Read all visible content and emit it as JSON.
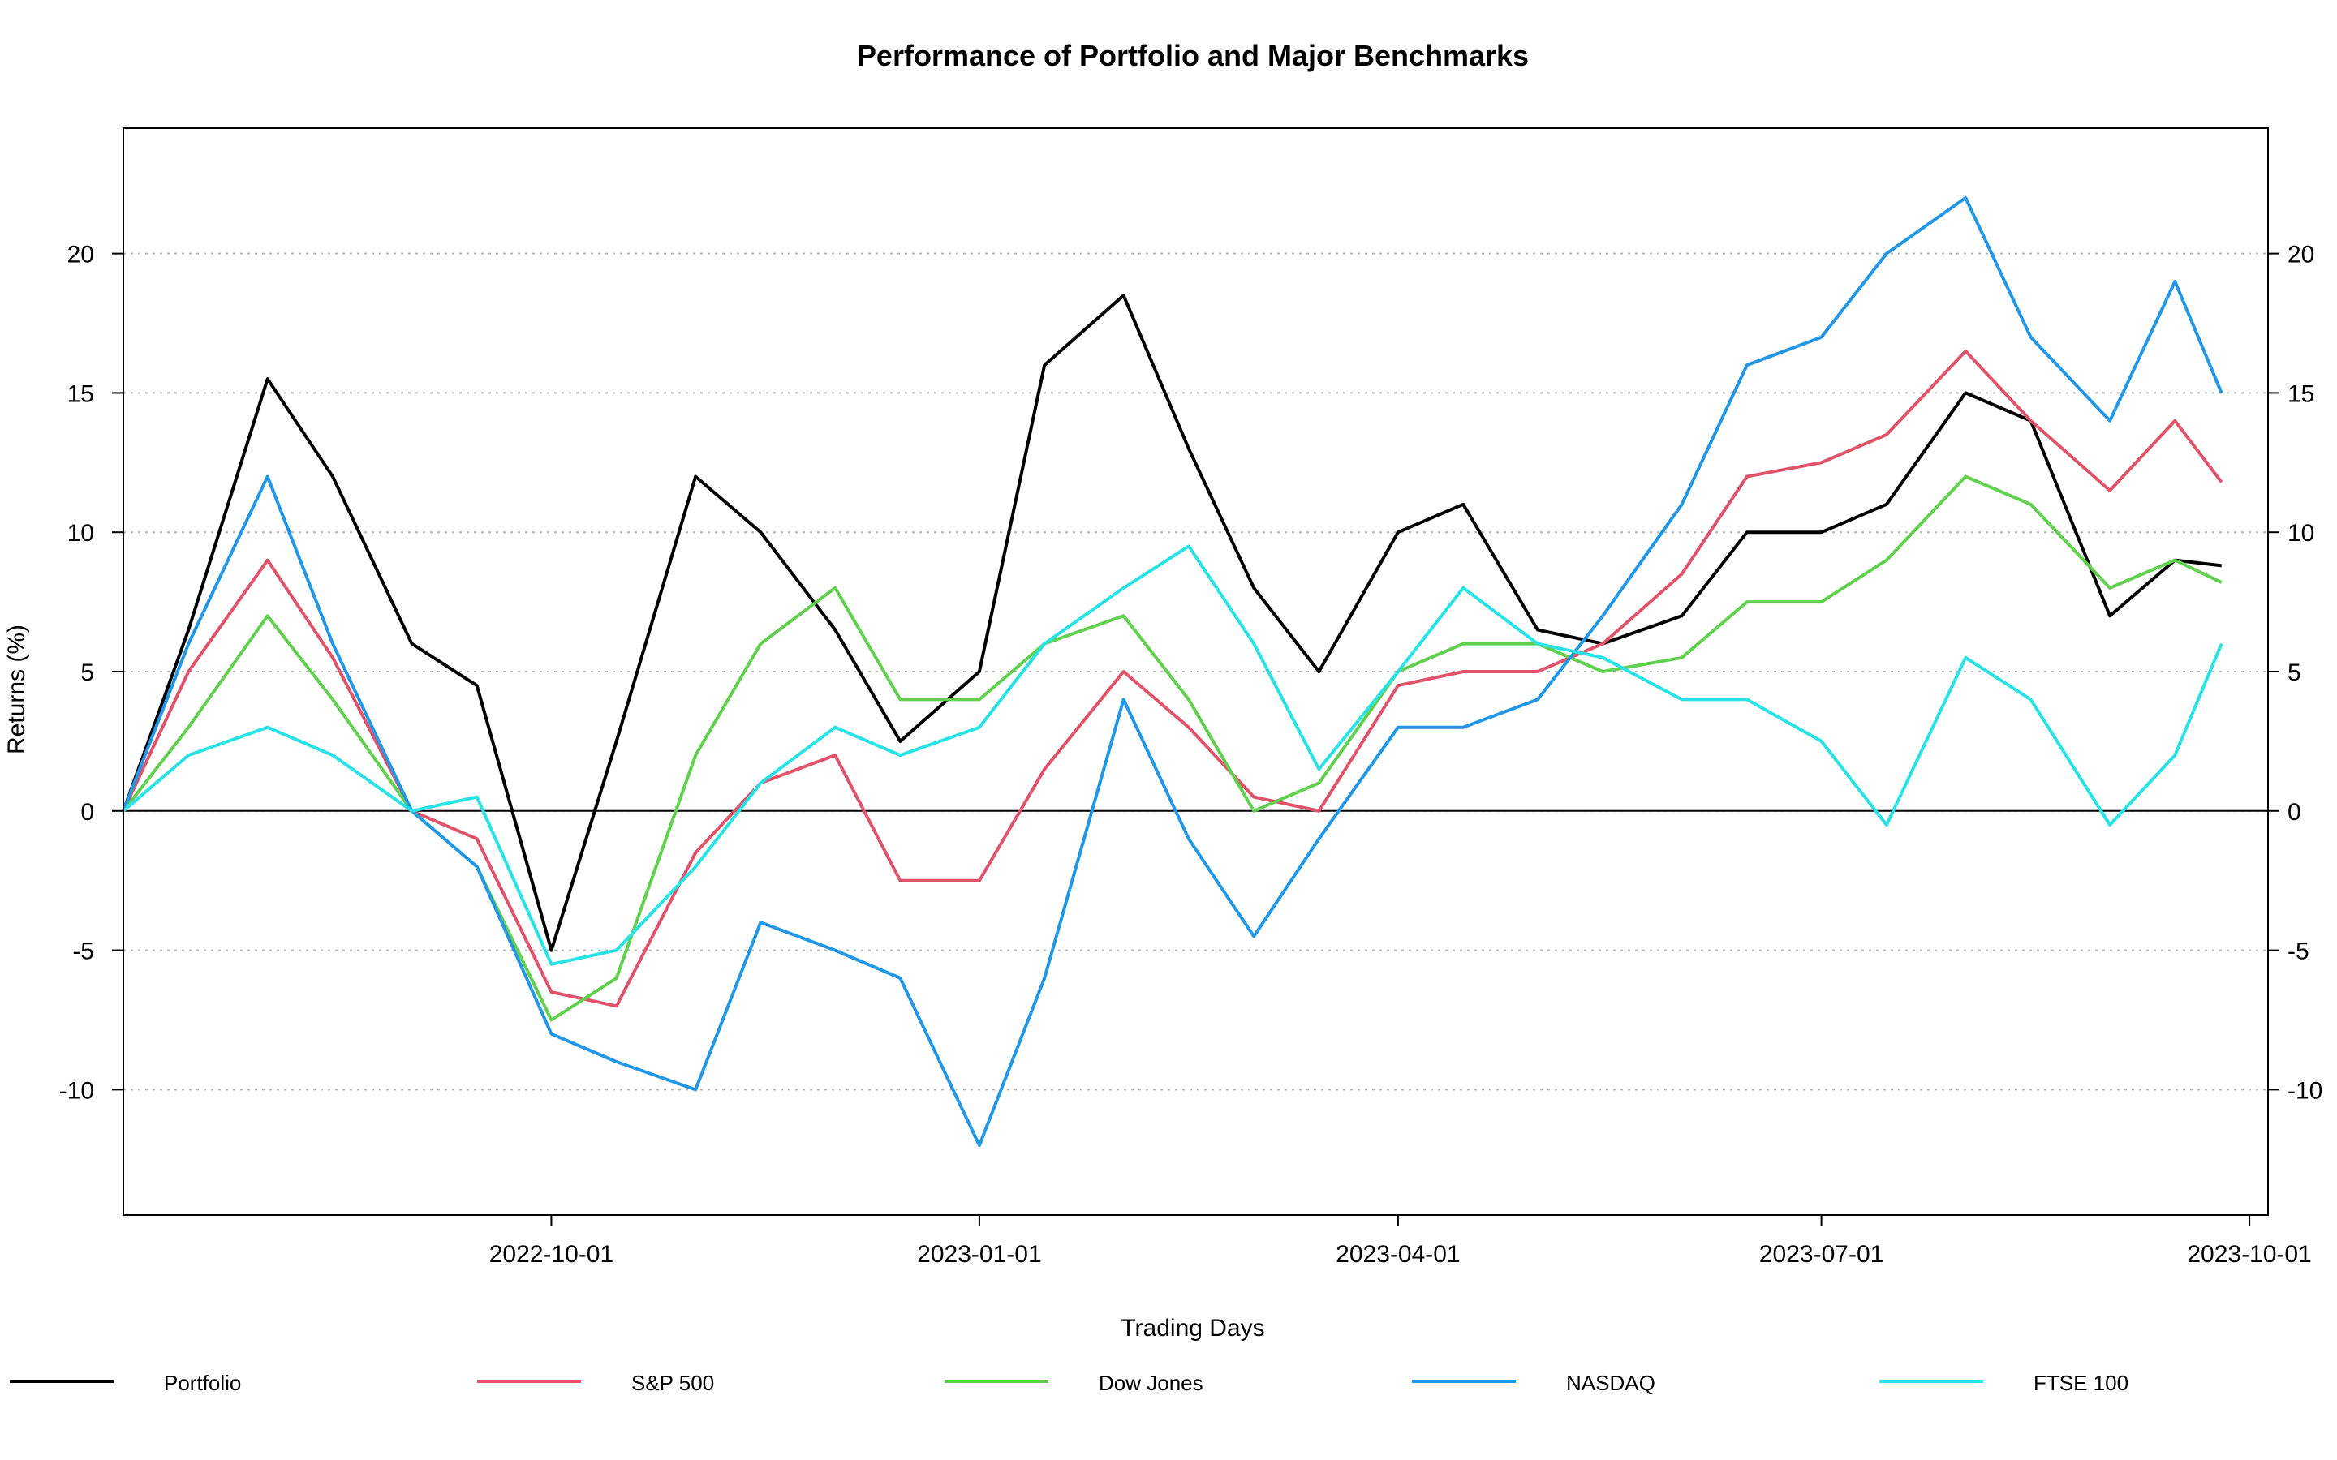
{
  "chart_data": {
    "type": "line",
    "title": "Performance of Portfolio and Major Benchmarks",
    "xlabel": "Trading Days",
    "ylabel": "Returns (%)",
    "x_range": [
      "2022-07-01",
      "2023-10-05"
    ],
    "ylim": [
      -14.5,
      24.5
    ],
    "y_ticks": [
      -10,
      -5,
      0,
      5,
      10,
      15,
      20
    ],
    "x_ticks": [
      "2022-10-01",
      "2023-01-01",
      "2023-04-01",
      "2023-07-01",
      "2023-10-01"
    ],
    "grid": "horizontal dotted at y ticks",
    "reference_line": 0,
    "legend_position": "bottom",
    "x": [
      "2022-07-01",
      "2022-07-15",
      "2022-08-01",
      "2022-08-15",
      "2022-09-01",
      "2022-09-15",
      "2022-10-01",
      "2022-10-15",
      "2022-11-01",
      "2022-11-15",
      "2022-12-01",
      "2022-12-15",
      "2023-01-01",
      "2023-01-15",
      "2023-02-01",
      "2023-02-15",
      "2023-03-01",
      "2023-03-15",
      "2023-04-01",
      "2023-04-15",
      "2023-05-01",
      "2023-05-15",
      "2023-06-01",
      "2023-06-15",
      "2023-07-01",
      "2023-07-15",
      "2023-08-01",
      "2023-08-15",
      "2023-09-01",
      "2023-09-15",
      "2023-09-25"
    ],
    "series": [
      {
        "name": "Portfolio",
        "color": "#000000",
        "values": [
          0,
          6.5,
          15.5,
          12,
          6,
          4.5,
          -5,
          2.5,
          12,
          10,
          6.5,
          2.5,
          5,
          16,
          18.5,
          13,
          8,
          5,
          10,
          11,
          6.5,
          6,
          7,
          10,
          10,
          11,
          15,
          14,
          7,
          9,
          8.8
        ]
      },
      {
        "name": "S&P 500",
        "color": "#DF536B",
        "values": [
          0,
          5,
          9,
          5.5,
          0,
          -1,
          -6.5,
          -7,
          -1.5,
          1,
          2,
          -2.5,
          -2.5,
          1.5,
          5,
          3,
          0.5,
          0,
          4.5,
          5,
          5,
          6,
          8.5,
          12,
          12.5,
          13.5,
          16.5,
          14,
          11.5,
          14,
          11.8
        ]
      },
      {
        "name": "Dow Jones",
        "color": "#61D04F",
        "values": [
          0,
          3,
          7,
          4,
          0,
          -2,
          -7.5,
          -6,
          2,
          6,
          8,
          4,
          4,
          6,
          7,
          4,
          0,
          1,
          5,
          6,
          6,
          5,
          5.5,
          7.5,
          7.5,
          9,
          12,
          11,
          8,
          9,
          8.2
        ]
      },
      {
        "name": "NASDAQ",
        "color": "#2297E6",
        "values": [
          0,
          6,
          12,
          6,
          0,
          -2,
          -8,
          -9,
          -10,
          -4,
          -5,
          -6,
          -12,
          -6,
          4,
          -1,
          -4.5,
          -1,
          3,
          3,
          4,
          7,
          11,
          16,
          17,
          20,
          22,
          17,
          14,
          19,
          15
        ]
      },
      {
        "name": "FTSE 100",
        "color": "#28E2E5",
        "values": [
          0,
          2,
          3,
          2,
          0,
          0.5,
          -5.5,
          -5,
          -2,
          1,
          3,
          2,
          3,
          6,
          8,
          9.5,
          6,
          1.5,
          5,
          8,
          6,
          5.5,
          4,
          4,
          2.5,
          -0.5,
          5.5,
          4,
          -0.5,
          2,
          6
        ]
      }
    ]
  }
}
